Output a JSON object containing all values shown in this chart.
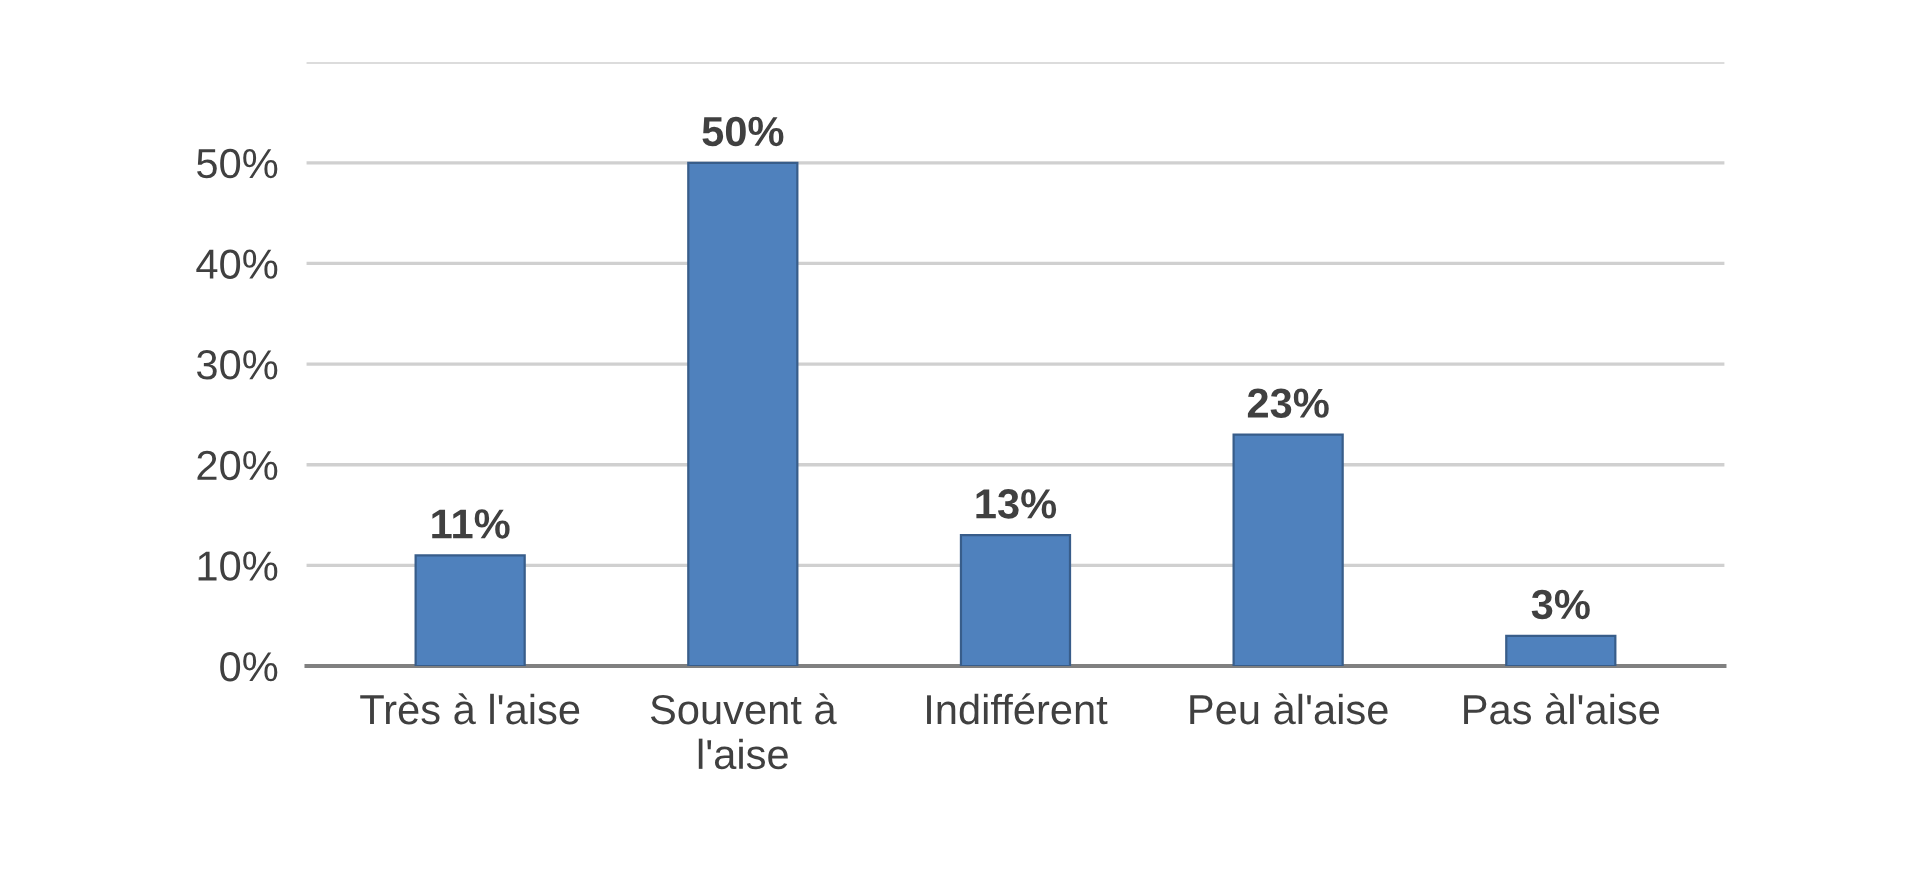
{
  "chart_data": {
    "type": "bar",
    "categories": [
      "Très à l'aise",
      "Souvent à\nl'aise",
      "Indifférent",
      "Peu àl'aise",
      "Pas àl'aise"
    ],
    "values": [
      11,
      50,
      13,
      23,
      3
    ],
    "value_labels": [
      "11%",
      "50%",
      "13%",
      "23%",
      "3%"
    ],
    "color": "#4f81bd",
    "ylim": [
      0,
      60
    ],
    "yticks": [
      {
        "value": 0,
        "label": "0%"
      },
      {
        "value": 10,
        "label": "10%"
      },
      {
        "value": 20,
        "label": "20%"
      },
      {
        "value": 30,
        "label": "30%"
      },
      {
        "value": 40,
        "label": "40%"
      },
      {
        "value": 50,
        "label": "50%"
      },
      {
        "value": 60,
        "label": null
      }
    ],
    "grid": "y"
  }
}
